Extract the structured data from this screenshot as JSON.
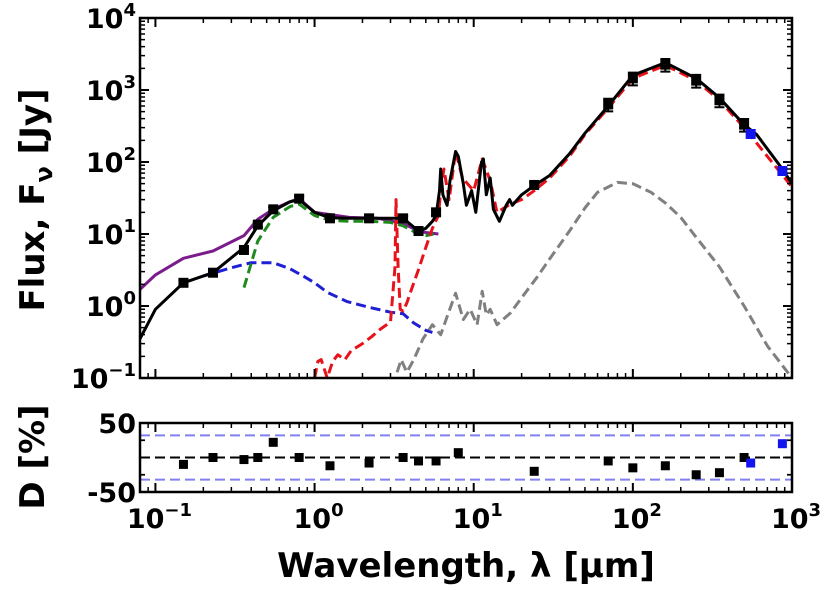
{
  "chart_data": [
    {
      "type": "line",
      "panel": "sed",
      "xscale": "log",
      "yscale": "log",
      "xlim": [
        0.08,
        1000
      ],
      "ylim": [
        0.1,
        10000
      ],
      "xlabel": "Wavelength, λ [μm]",
      "ylabel": "Flux, Fν [Jy]",
      "ylabel_parts": {
        "pre": "Flux, F",
        "sub": "ν",
        "post": " [Jy]"
      },
      "xticks": [
        {
          "base": "10",
          "exp": "−1",
          "value": 0.1
        },
        {
          "base": "10",
          "exp": "0",
          "value": 1
        },
        {
          "base": "10",
          "exp": "1",
          "value": 10
        },
        {
          "base": "10",
          "exp": "2",
          "value": 100
        },
        {
          "base": "10",
          "exp": "3",
          "value": 1000
        }
      ],
      "yticks": [
        {
          "base": "10",
          "exp": "−1",
          "value": 0.1
        },
        {
          "base": "10",
          "exp": "0",
          "value": 1
        },
        {
          "base": "10",
          "exp": "1",
          "value": 10
        },
        {
          "base": "10",
          "exp": "2",
          "value": 100
        },
        {
          "base": "10",
          "exp": "3",
          "value": 1000
        },
        {
          "base": "10",
          "exp": "4",
          "value": 10000
        }
      ],
      "series": [
        {
          "name": "total model",
          "style": "solid",
          "color": "#000000",
          "x": [
            0.08,
            0.1,
            0.15,
            0.23,
            0.36,
            0.44,
            0.55,
            0.7,
            0.8,
            1.0,
            1.25,
            1.65,
            2.2,
            3.0,
            3.6,
            4.5,
            5.0,
            5.5,
            5.8,
            6.1,
            6.2,
            6.4,
            6.8,
            7.1,
            7.7,
            8.0,
            8.6,
            9.0,
            9.7,
            10.3,
            11.2,
            11.5,
            12.0,
            12.7,
            13.3,
            14.5,
            16.0,
            16.8,
            17.5,
            20,
            24,
            30,
            40,
            50,
            70,
            100,
            160,
            250,
            350,
            500,
            600,
            870,
            1000
          ],
          "y": [
            0.35,
            0.9,
            2.1,
            2.9,
            6.5,
            13,
            21,
            28,
            30,
            20,
            16.8,
            16.5,
            16.5,
            16.5,
            16.5,
            11,
            12,
            15,
            18,
            40,
            80,
            35,
            25,
            55,
            140,
            120,
            50,
            25,
            40,
            20,
            100,
            110,
            35,
            60,
            22,
            15,
            25,
            30,
            25,
            35,
            47,
            65,
            130,
            250,
            600,
            1600,
            2400,
            1450,
            780,
            330,
            240,
            80,
            50
          ]
        },
        {
          "name": "purple component",
          "style": "solid",
          "color": "#7b1c8c",
          "x": [
            0.08,
            0.1,
            0.15,
            0.23,
            0.36,
            0.44,
            0.55,
            0.7,
            0.8,
            1.0,
            1.65,
            2.5,
            3.6,
            4.5,
            5.0,
            6.0
          ],
          "y": [
            1.7,
            2.7,
            4.6,
            5.8,
            9.5,
            16,
            22,
            28,
            31,
            20,
            17,
            16.5,
            14,
            11,
            10.5,
            10
          ]
        },
        {
          "name": "blue component",
          "style": "dashed",
          "color": "#1f1fd4",
          "x": [
            0.2,
            0.3,
            0.4,
            0.55,
            0.7,
            0.85,
            1.0,
            1.2,
            1.6,
            2.2,
            3.0,
            3.6,
            4.2,
            5.0,
            5.5
          ],
          "y": [
            2.6,
            3.4,
            4.0,
            4.0,
            3.3,
            2.6,
            2.1,
            1.55,
            1.15,
            0.96,
            0.82,
            0.78,
            0.58,
            0.46,
            0.43
          ]
        },
        {
          "name": "green component",
          "style": "dashed",
          "color": "#1e8a1e",
          "x": [
            0.36,
            0.44,
            0.55,
            0.7,
            0.8,
            1.0,
            1.25,
            1.65,
            2.2,
            3.0,
            3.6,
            4.5,
            5.0,
            5.6
          ],
          "y": [
            1.8,
            8.0,
            17,
            24,
            26,
            18,
            15.5,
            15,
            15,
            14.5,
            13,
            10,
            9.5,
            10
          ]
        },
        {
          "name": "red component",
          "style": "dashed",
          "color": "#e8121a",
          "x": [
            1.0,
            1.05,
            1.1,
            1.2,
            1.3,
            1.4,
            1.55,
            1.7,
            2.0,
            2.3,
            2.6,
            3.0,
            3.2,
            3.25,
            3.35,
            3.45,
            3.6,
            3.8,
            4.1,
            4.5,
            5.0,
            5.5,
            6.0,
            6.2,
            6.5,
            7.0,
            7.7,
            8.5,
            10,
            11.3,
            12.7,
            14,
            17,
            20,
            24,
            30,
            40,
            50,
            70,
            100,
            160,
            250,
            350,
            500,
            700,
            1000
          ],
          "y": [
            0.1,
            0.17,
            0.18,
            0.1,
            0.17,
            0.21,
            0.18,
            0.24,
            0.3,
            0.38,
            0.48,
            0.6,
            3.5,
            30,
            3.5,
            0.9,
            0.85,
            1.1,
            1.8,
            3.2,
            6.5,
            12,
            18,
            40,
            80,
            30,
            140,
            60,
            40,
            110,
            55,
            20,
            26,
            30,
            40,
            60,
            120,
            240,
            560,
            1450,
            2200,
            1350,
            720,
            300,
            120,
            45
          ]
        },
        {
          "name": "gray component",
          "style": "dashed",
          "color": "#808080",
          "x": [
            3.3,
            3.5,
            3.8,
            4.2,
            4.8,
            5.5,
            6.2,
            7.0,
            7.7,
            8.6,
            9.5,
            10.5,
            11.3,
            12.0,
            12.7,
            14,
            17,
            20,
            25,
            30,
            40,
            50,
            60,
            80,
            100,
            130,
            160,
            200,
            250,
            350,
            500,
            700,
            1000
          ],
          "y": [
            0.12,
            0.18,
            0.12,
            0.18,
            0.35,
            0.55,
            0.4,
            0.85,
            1.5,
            0.65,
            0.9,
            0.55,
            1.6,
            0.75,
            0.9,
            0.55,
            0.8,
            1.3,
            2.5,
            4.5,
            11,
            23,
            38,
            52,
            50,
            38,
            27,
            17,
            9,
            3.5,
            1.0,
            0.28,
            0.1
          ]
        }
      ],
      "observations": [
        {
          "label": "black photometry",
          "color": "#000000",
          "x": [
            0.15,
            0.23,
            0.36,
            0.44,
            0.55,
            0.8,
            1.25,
            2.2,
            3.6,
            4.5,
            5.8,
            24,
            70,
            100,
            160,
            250,
            350,
            500
          ],
          "y": [
            2.1,
            2.9,
            6.0,
            13.5,
            22,
            31,
            16.5,
            16.5,
            16.5,
            11,
            20,
            48,
            630,
            1450,
            2250,
            1350,
            720,
            330
          ],
          "yerr_rel": [
            0.08,
            0.08,
            0.08,
            0.08,
            0.08,
            0.08,
            0.08,
            0.08,
            0.08,
            0.08,
            0.08,
            0.08,
            0.2,
            0.2,
            0.2,
            0.2,
            0.2,
            0.2
          ]
        },
        {
          "label": "blue photometry",
          "color": "#1414f0",
          "x": [
            550,
            870
          ],
          "y": [
            245,
            75
          ],
          "yerr_rel": [
            0,
            0
          ]
        }
      ]
    },
    {
      "type": "scatter",
      "panel": "residuals",
      "xscale": "log",
      "xlim": [
        0.08,
        1000
      ],
      "ylim": [
        -50,
        50
      ],
      "ylabel": "D [%]",
      "ylabel_parts": {
        "pre": "D [%]"
      },
      "yticks": [
        {
          "label": "50",
          "value": 50
        },
        {
          "label": "-50",
          "value": -50
        }
      ],
      "hlines": [
        {
          "value": 0,
          "color": "#000000",
          "style": "dashed"
        },
        {
          "value": 32,
          "color": "#8080f0",
          "style": "dashed"
        },
        {
          "value": -32,
          "color": "#8080f0",
          "style": "dashed"
        }
      ],
      "points": [
        {
          "x": 0.15,
          "y": -10,
          "color": "#000000"
        },
        {
          "x": 0.23,
          "y": 0,
          "color": "#000000"
        },
        {
          "x": 0.36,
          "y": -3,
          "color": "#000000"
        },
        {
          "x": 0.44,
          "y": 0,
          "color": "#000000"
        },
        {
          "x": 0.55,
          "y": 22,
          "color": "#000000"
        },
        {
          "x": 0.8,
          "y": 0,
          "color": "#000000"
        },
        {
          "x": 1.25,
          "y": -12,
          "color": "#000000"
        },
        {
          "x": 2.2,
          "y": -8,
          "color": "#000000"
        },
        {
          "x": 3.6,
          "y": 0,
          "color": "#000000"
        },
        {
          "x": 4.5,
          "y": -5,
          "color": "#000000"
        },
        {
          "x": 5.8,
          "y": -5,
          "color": "#000000"
        },
        {
          "x": 8.0,
          "y": 7,
          "color": "#000000"
        },
        {
          "x": 24,
          "y": -20,
          "color": "#000000"
        },
        {
          "x": 70,
          "y": -5,
          "color": "#000000"
        },
        {
          "x": 100,
          "y": -15,
          "color": "#000000"
        },
        {
          "x": 160,
          "y": -12,
          "color": "#000000"
        },
        {
          "x": 250,
          "y": -25,
          "color": "#000000"
        },
        {
          "x": 350,
          "y": -22,
          "color": "#000000"
        },
        {
          "x": 500,
          "y": 0,
          "color": "#000000"
        },
        {
          "x": 550,
          "y": -8,
          "color": "#1414f0"
        },
        {
          "x": 870,
          "y": 20,
          "color": "#1414f0"
        }
      ]
    }
  ]
}
